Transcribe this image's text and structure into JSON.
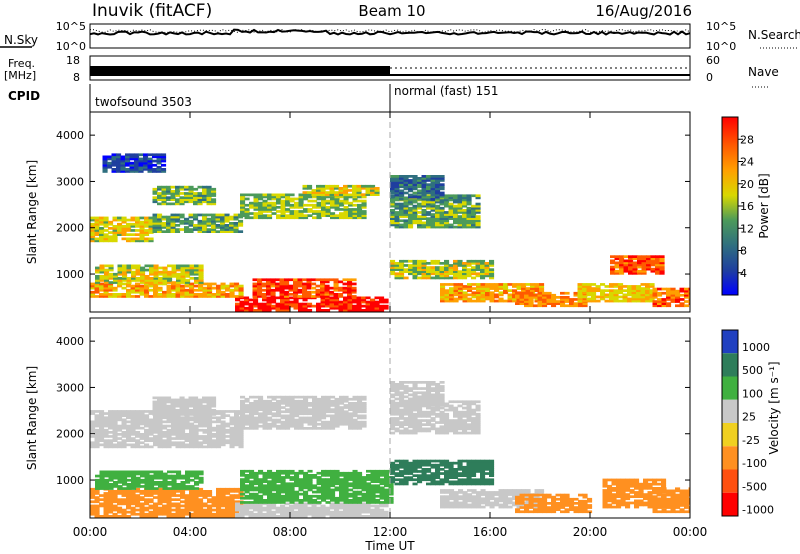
{
  "header": {
    "title_left": "Inuvik (fitACF)",
    "title_center": "Beam 10",
    "title_right": "16/Aug/2016"
  },
  "top_panels": {
    "nsky_label": "N.Sky",
    "nsky_ticks": [
      "10^5",
      "10^0"
    ],
    "nsearch_label": "N.Search",
    "nsearch_ticks": [
      "10^5",
      "10^0"
    ],
    "freq_label": "Freq.",
    "freq_unit": "[MHz]",
    "freq_ticks": [
      "18",
      "8"
    ],
    "nave_label": "Nave",
    "nave_ticks": [
      "60",
      "0"
    ],
    "cpid_label": "CPID",
    "cpid_segments": [
      {
        "label": "twofsound 3503",
        "start_hour": 0,
        "end_hour": 12
      },
      {
        "label": "normal (fast) 151",
        "start_hour": 12,
        "end_hour": 24
      }
    ]
  },
  "chart_data": [
    {
      "type": "heatmap",
      "name": "power",
      "ylabel": "Slant Range [km]",
      "xlabel": "Time UT",
      "x_ticks": [
        "00:00",
        "04:00",
        "08:00",
        "12:00",
        "16:00",
        "20:00",
        "00:00"
      ],
      "xlim_hours": [
        0,
        24
      ],
      "ylim_km": [
        180,
        4500
      ],
      "y_ticks": [
        1000,
        2000,
        3000,
        4000
      ],
      "colorbar_label": "Power [dB]",
      "colorbar_ticks": [
        "4",
        "8",
        "12",
        "16",
        "20",
        "24",
        "28"
      ],
      "colorbar_range": [
        0,
        32
      ],
      "regions": [
        {
          "t0": 5.8,
          "t1": 11.9,
          "r0": 200,
          "r1": 500,
          "value": 30
        },
        {
          "t0": 6.5,
          "t1": 10.5,
          "r0": 500,
          "r1": 900,
          "value": 27
        },
        {
          "t0": 0.0,
          "t1": 6.0,
          "r0": 500,
          "r1": 800,
          "value": 22
        },
        {
          "t0": 0.2,
          "t1": 4.5,
          "r0": 800,
          "r1": 1200,
          "value": 18
        },
        {
          "t0": 0.0,
          "t1": 2.5,
          "r0": 1700,
          "r1": 2200,
          "value": 19
        },
        {
          "t0": 2.5,
          "t1": 6.0,
          "r0": 1900,
          "r1": 2300,
          "value": 14
        },
        {
          "t0": 2.5,
          "t1": 5.0,
          "r0": 2500,
          "r1": 2900,
          "value": 15
        },
        {
          "t0": 6.0,
          "t1": 11.0,
          "r0": 2200,
          "r1": 2700,
          "value": 16
        },
        {
          "t0": 8.5,
          "t1": 11.5,
          "r0": 2700,
          "r1": 2900,
          "value": 18
        },
        {
          "t0": 12.0,
          "t1": 15.5,
          "r0": 2000,
          "r1": 2700,
          "value": 14
        },
        {
          "t0": 12.0,
          "t1": 16.0,
          "r0": 900,
          "r1": 1300,
          "value": 17
        },
        {
          "t0": 14.0,
          "t1": 18.0,
          "r0": 400,
          "r1": 800,
          "value": 22
        },
        {
          "t0": 17.0,
          "t1": 19.8,
          "r0": 300,
          "r1": 600,
          "value": 24
        },
        {
          "t0": 19.5,
          "t1": 22.5,
          "r0": 400,
          "r1": 800,
          "value": 20
        },
        {
          "t0": 20.8,
          "t1": 22.8,
          "r0": 1000,
          "r1": 1400,
          "value": 26
        },
        {
          "t0": 22.5,
          "t1": 24.0,
          "r0": 300,
          "r1": 700,
          "value": 25
        },
        {
          "t0": 12.0,
          "t1": 14.0,
          "r0": 2600,
          "r1": 3100,
          "value": 10
        },
        {
          "t0": 0.5,
          "t1": 3.0,
          "r0": 3200,
          "r1": 3600,
          "value": 6
        }
      ]
    },
    {
      "type": "heatmap",
      "name": "velocity",
      "ylabel": "Slant Range [km]",
      "xlabel": "Time UT",
      "x_ticks": [
        "00:00",
        "04:00",
        "08:00",
        "12:00",
        "16:00",
        "20:00",
        "00:00"
      ],
      "xlim_hours": [
        0,
        24
      ],
      "ylim_km": [
        180,
        4500
      ],
      "y_ticks": [
        1000,
        2000,
        3000,
        4000
      ],
      "colorbar_label": "Velocity [m s⁻¹]",
      "colorbar_ticks": [
        "1000",
        "500",
        "100",
        "25",
        "-25",
        "-100",
        "-500",
        "-1000"
      ],
      "regions": [
        {
          "t0": 0.0,
          "t1": 6.0,
          "r0": 200,
          "r1": 800,
          "value": -150
        },
        {
          "t0": 5.8,
          "t1": 11.9,
          "r0": 200,
          "r1": 500,
          "value": 10
        },
        {
          "t0": 6.0,
          "t1": 12.0,
          "r0": 500,
          "r1": 1200,
          "value": 60
        },
        {
          "t0": 0.2,
          "t1": 4.5,
          "r0": 800,
          "r1": 1200,
          "value": 80
        },
        {
          "t0": 0.0,
          "t1": 6.0,
          "r0": 1700,
          "r1": 2500,
          "value": 5
        },
        {
          "t0": 2.5,
          "t1": 5.0,
          "r0": 2400,
          "r1": 2800,
          "value": 5
        },
        {
          "t0": 6.0,
          "t1": 11.0,
          "r0": 2100,
          "r1": 2800,
          "value": 8
        },
        {
          "t0": 12.0,
          "t1": 16.0,
          "r0": 900,
          "r1": 1400,
          "value": 200
        },
        {
          "t0": 12.0,
          "t1": 15.5,
          "r0": 2000,
          "r1": 2700,
          "value": 3
        },
        {
          "t0": 14.0,
          "t1": 18.0,
          "r0": 400,
          "r1": 800,
          "value": -20
        },
        {
          "t0": 17.0,
          "t1": 20.0,
          "r0": 300,
          "r1": 700,
          "value": -200
        },
        {
          "t0": 20.5,
          "t1": 23.0,
          "r0": 400,
          "r1": 1000,
          "value": -400
        },
        {
          "t0": 22.5,
          "t1": 24.0,
          "r0": 300,
          "r1": 800,
          "value": -150
        },
        {
          "t0": 12.0,
          "t1": 14.0,
          "r0": 2600,
          "r1": 3100,
          "value": 4
        }
      ]
    }
  ]
}
